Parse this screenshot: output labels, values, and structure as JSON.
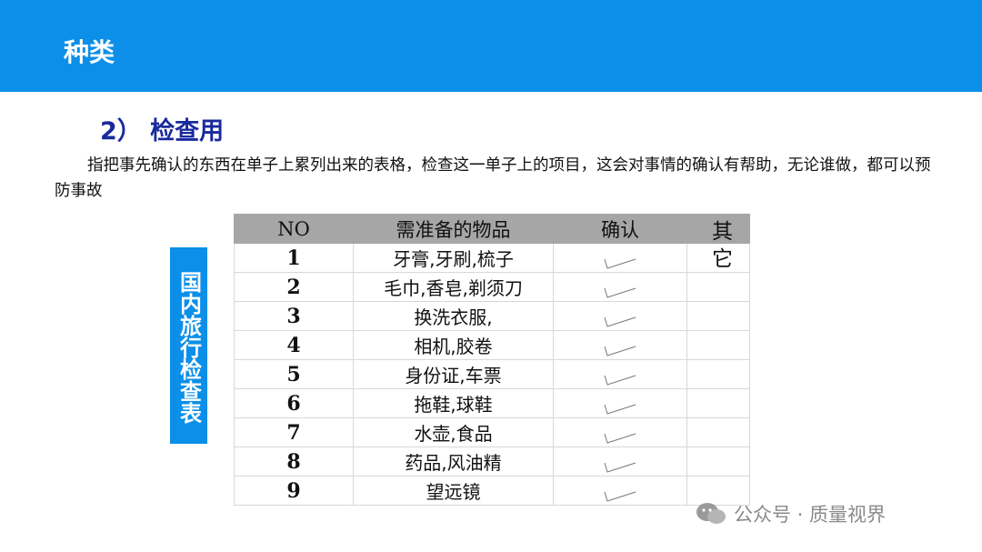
{
  "header": {
    "title": "种类"
  },
  "section": {
    "subtitle": "2） 检查用",
    "paragraph": "指把事先确认的东西在单子上累列出来的表格，检查这一单子上的项目，这会对事情的确认有帮助，无论谁做，都可以预防事故"
  },
  "side_label": "国内旅行检查表",
  "table": {
    "headers": [
      "NO",
      "需准备的物品",
      "确认",
      "其它"
    ],
    "other_text": "其它",
    "rows": [
      {
        "no": "1",
        "item": "牙膏,牙刷,梳子",
        "checked": true
      },
      {
        "no": "2",
        "item": "毛巾,香皂,剃须刀",
        "checked": true
      },
      {
        "no": "3",
        "item": "换洗衣服,",
        "checked": true
      },
      {
        "no": "4",
        "item": "相机,胶卷",
        "checked": true
      },
      {
        "no": "5",
        "item": "身份证,车票",
        "checked": true
      },
      {
        "no": "6",
        "item": "拖鞋,球鞋",
        "checked": true
      },
      {
        "no": "7",
        "item": "水壶,食品",
        "checked": true
      },
      {
        "no": "8",
        "item": "药品,风油精",
        "checked": true
      },
      {
        "no": "9",
        "item": "望远镜",
        "checked": true
      }
    ]
  },
  "watermark": "公众号 · 质量视界",
  "colors": {
    "header_bar": "#0b8fe8",
    "subtitle": "#1a2a9c",
    "table_header": "#a6a6a6"
  }
}
